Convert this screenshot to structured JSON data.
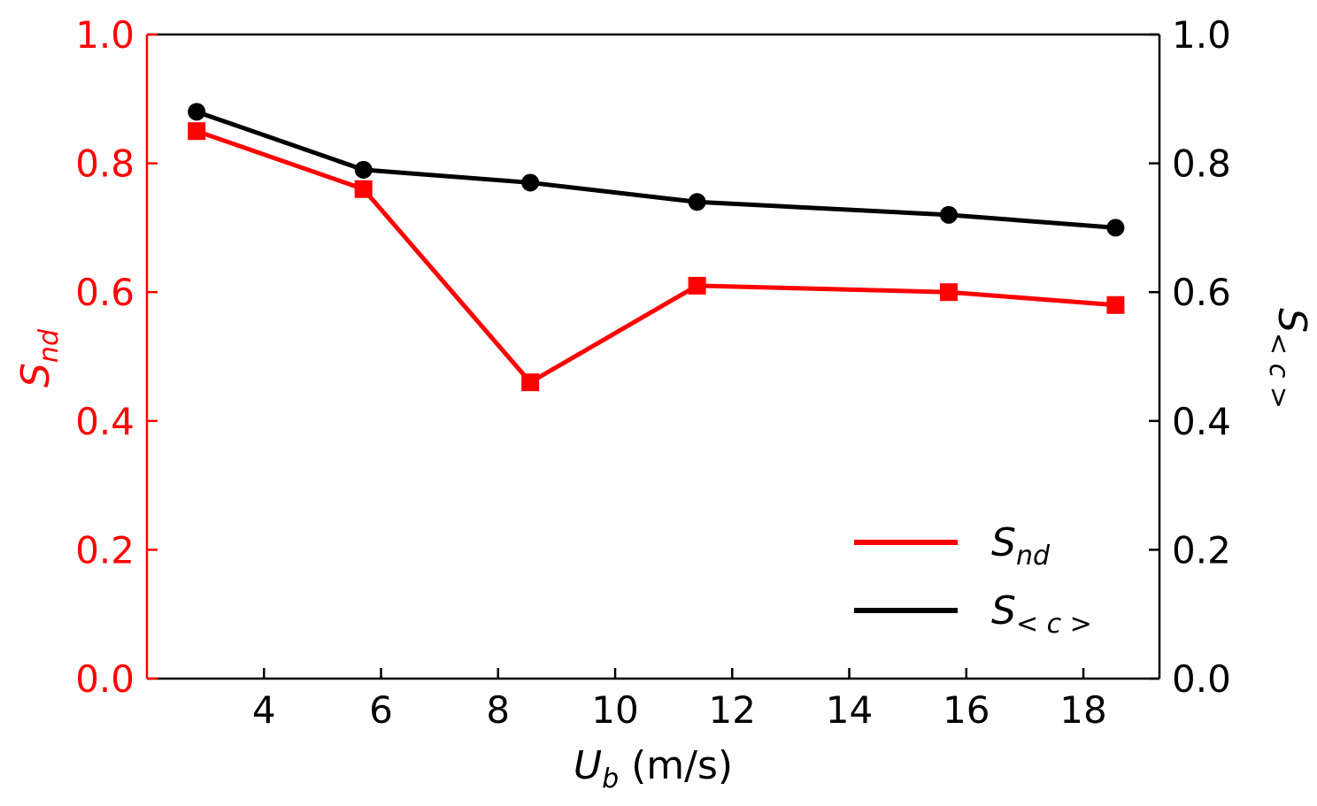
{
  "chart_data": {
    "type": "line",
    "title": "",
    "xlabel": {
      "main": "U",
      "sub": "b",
      "unit": " (m/s)"
    },
    "ylabel_left": {
      "main": "S",
      "sub": "nd"
    },
    "ylabel_right": {
      "main": "S",
      "sub": "< c >"
    },
    "xlim": [
      2,
      19.3
    ],
    "ylim": [
      0,
      1
    ],
    "x_ticks": [
      4,
      6,
      8,
      10,
      12,
      14,
      16,
      18
    ],
    "y_ticks": [
      "0.0",
      "0.2",
      "0.4",
      "0.6",
      "0.8",
      "1.0"
    ],
    "x": [
      2.85,
      5.7,
      8.55,
      11.4,
      15.7,
      18.55
    ],
    "series": [
      {
        "name": "S_nd",
        "label_main": "S",
        "label_sub": "nd",
        "color": "#ff0000",
        "marker": "square",
        "axis": "left",
        "values": [
          0.85,
          0.76,
          0.46,
          0.61,
          0.6,
          0.58
        ]
      },
      {
        "name": "S_<c>",
        "label_main": "S",
        "label_sub": "< c >",
        "color": "#000000",
        "marker": "circle",
        "axis": "right",
        "values": [
          0.88,
          0.79,
          0.77,
          0.74,
          0.72,
          0.7
        ]
      }
    ],
    "legend_position": "lower-right",
    "grid": false
  }
}
